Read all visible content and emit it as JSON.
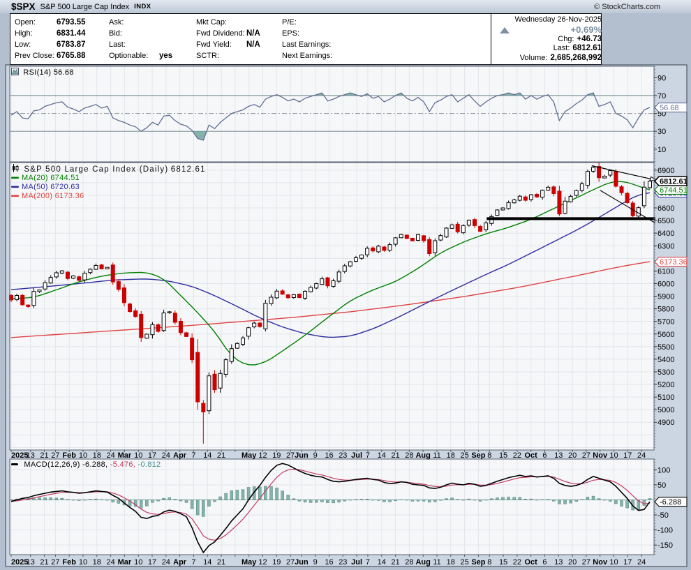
{
  "header": {
    "symbol": "$SPX",
    "name": "S&P 500 Large Cap Index",
    "exchange": "INDX",
    "copyright": "© StockCharts.com",
    "date": "Wednesday 26-Nov-2025",
    "pct_change": "+0.69%",
    "rows_left": [
      [
        "Open:",
        "6793.55"
      ],
      [
        "High:",
        "6831.44"
      ],
      [
        "Low:",
        "6783.87"
      ],
      [
        "Prev Close:",
        "6765.88"
      ]
    ],
    "rows_mid": [
      [
        "Ask:",
        ""
      ],
      [
        "Bid:",
        ""
      ],
      [
        "Last:",
        ""
      ],
      [
        "Optionable:",
        "yes"
      ]
    ],
    "rows_mid2": [
      [
        "Mkt Cap:",
        ""
      ],
      [
        "Fwd Dividend:",
        "N/A"
      ],
      [
        "Fwd Yield:",
        "N/A"
      ],
      [
        "SCTR:",
        ""
      ]
    ],
    "rows_right": [
      [
        "P/E:",
        ""
      ],
      [
        "EPS:",
        ""
      ],
      [
        "Last Earnings:",
        ""
      ],
      [
        "Next Earnings:",
        ""
      ]
    ],
    "stats": [
      [
        "Chg:",
        "+46.73"
      ],
      [
        "Last:",
        "6812.61"
      ],
      [
        "Volume:",
        "2,685,268,992"
      ]
    ]
  },
  "legends": {
    "rsi": {
      "label": "RSI(14)",
      "value": "56.68"
    },
    "main": {
      "title": "S&P 500 Large Cap Index (Daily)",
      "value": "6812.61",
      "ma20_label": "MA(20)",
      "ma20_value": "6744.51",
      "ma50_label": "MA(50)",
      "ma50_value": "6720.63",
      "ma200_label": "MA(200)",
      "ma200_value": "6173.36"
    },
    "macd": {
      "label": "MACD(12,26,9)",
      "v1": "-6.288,",
      "v2": "-5.476,",
      "v3": "-0.812"
    }
  },
  "colors": {
    "up_candle": "#000000",
    "down_candle": "#cc0000",
    "ma20": "#008000",
    "ma50": "#2d2da0",
    "ma200": "#e04343",
    "rsi_line": "#5f6e91",
    "teal_fill": "#86b2ac",
    "teal_stroke": "#4e7f78",
    "macd_line": "#000000",
    "signal_line": "#c23b5e",
    "grid": "#e2e5eb",
    "plot_bg": "#f6f7f9",
    "gutter_bg": "#ccd5e2",
    "pct_gray": "#7e90a4",
    "annotation": "#000000"
  },
  "chart_data": {
    "x_axis": {
      "total_days": 231,
      "grid_days": [
        0,
        7,
        12,
        16,
        21,
        26,
        31,
        36,
        41,
        46,
        51,
        56,
        61,
        66,
        71,
        76,
        81,
        86,
        91,
        96,
        101,
        105,
        110,
        115,
        120,
        125,
        129,
        134,
        139,
        144,
        149,
        154,
        159,
        164,
        169,
        173,
        178,
        183,
        188,
        193,
        198,
        203,
        208,
        213,
        218,
        223,
        228
      ],
      "labels": [
        [
          "2025",
          0,
          1
        ],
        [
          "13",
          7,
          0
        ],
        [
          "21",
          12,
          0
        ],
        [
          "27",
          16,
          0
        ],
        [
          "Feb",
          21,
          1
        ],
        [
          "10",
          26,
          0
        ],
        [
          "18",
          31,
          0
        ],
        [
          "24",
          36,
          0
        ],
        [
          "Mar",
          41,
          1
        ],
        [
          "10",
          46,
          0
        ],
        [
          "17",
          51,
          0
        ],
        [
          "24",
          56,
          0
        ],
        [
          "Apr",
          61,
          1
        ],
        [
          "7",
          66,
          0
        ],
        [
          "14",
          71,
          0
        ],
        [
          "21",
          76,
          0
        ],
        [
          "May",
          86,
          1
        ],
        [
          "12",
          91,
          0
        ],
        [
          "19",
          96,
          0
        ],
        [
          "27",
          101,
          0
        ],
        [
          "Jun",
          105,
          1
        ],
        [
          "9",
          110,
          0
        ],
        [
          "16",
          115,
          0
        ],
        [
          "23",
          120,
          0
        ],
        [
          "Jul",
          125,
          1
        ],
        [
          "7",
          129,
          0
        ],
        [
          "14",
          134,
          0
        ],
        [
          "21",
          139,
          0
        ],
        [
          "28",
          144,
          0
        ],
        [
          "Aug",
          149,
          1
        ],
        [
          "11",
          154,
          0
        ],
        [
          "18",
          159,
          0
        ],
        [
          "25",
          164,
          0
        ],
        [
          "Sep",
          169,
          1
        ],
        [
          "8",
          173,
          0
        ],
        [
          "15",
          178,
          0
        ],
        [
          "22",
          183,
          0
        ],
        [
          "Oct",
          188,
          1
        ],
        [
          "6",
          193,
          0
        ],
        [
          "13",
          198,
          0
        ],
        [
          "20",
          203,
          0
        ],
        [
          "27",
          208,
          0
        ],
        [
          "Nov",
          213,
          1
        ],
        [
          "10",
          218,
          0
        ],
        [
          "17",
          223,
          0
        ],
        [
          "24",
          228,
          0
        ]
      ]
    },
    "rsi": {
      "type": "line",
      "label": "RSI(14)",
      "last": 56.68,
      "levels": {
        "overbought": 70,
        "mid": 50,
        "oversold": 30
      },
      "yticks": [
        90,
        70,
        50,
        30,
        10
      ],
      "values": [
        48,
        52,
        45,
        44,
        53,
        54,
        58,
        60,
        62,
        63,
        57,
        55,
        52,
        56,
        58,
        60,
        56,
        58,
        45,
        42,
        40,
        37,
        35,
        30,
        34,
        40,
        37,
        47,
        48,
        42,
        38,
        36,
        31,
        22,
        20,
        37,
        33,
        40,
        45,
        50,
        52,
        54,
        58,
        60,
        57,
        66,
        69,
        71,
        68,
        64,
        66,
        63,
        67,
        69,
        71,
        73,
        64,
        66,
        69,
        71,
        73,
        71,
        69,
        72,
        67,
        69,
        63,
        66,
        70,
        73,
        67,
        64,
        68,
        63,
        52,
        62,
        65,
        69,
        71,
        63,
        67,
        71,
        64,
        58,
        63,
        67,
        70,
        71,
        73,
        71,
        73,
        66,
        70,
        66,
        69,
        71,
        63,
        42,
        52,
        56,
        61,
        65,
        71,
        73,
        58,
        60,
        63,
        50,
        47,
        43,
        34,
        45,
        54,
        56.68
      ]
    },
    "price": {
      "type": "candlestick",
      "title": "S&P 500 Large Cap Index (Daily)",
      "last": 6812.61,
      "range": [
        4674,
        6960
      ],
      "yticks": [
        6900,
        6600,
        6500,
        6400,
        6300,
        6100,
        6000,
        5900,
        5800,
        5700,
        5600,
        5500,
        5400,
        5300,
        5200,
        5100,
        5000,
        4900
      ],
      "axis_boxes": [
        {
          "value": 6720.63,
          "text": "6720.63",
          "color": "#2d2da0"
        },
        {
          "value": 6744.51,
          "text": "6744.51",
          "color": "#008000"
        },
        {
          "value": 6812.61,
          "text": "6812.61",
          "color": "#000000",
          "bold": true
        }
      ],
      "axis_box_ma200": {
        "value": 6173.36,
        "text": "6173.36",
        "color": "#e04343"
      },
      "closes": [
        5870,
        5906,
        5832,
        5818,
        5938,
        5949,
        6008,
        6049,
        6086,
        6101,
        6040,
        6061,
        6026,
        6083,
        6114,
        6144,
        6117,
        6129,
        6013,
        5954,
        5849,
        5778,
        5738,
        5572,
        5599,
        5675,
        5621,
        5767,
        5776,
        5693,
        5611,
        5580,
        5396,
        5062,
        4982,
        5268,
        5158,
        5287,
        5396,
        5484,
        5525,
        5569,
        5650,
        5687,
        5659,
        5844,
        5892,
        5940,
        5916,
        5888,
        5912,
        5889,
        5939,
        5970,
        6000,
        6038,
        5982,
        6022,
        6092,
        6141,
        6173,
        6205,
        6227,
        6280,
        6259,
        6297,
        6263,
        6309,
        6363,
        6389,
        6358,
        6339,
        6389,
        6340,
        6238,
        6340,
        6381,
        6440,
        6466,
        6411,
        6460,
        6502,
        6460,
        6415,
        6481,
        6532,
        6584,
        6600,
        6643,
        6664,
        6693,
        6661,
        6705,
        6688,
        6740,
        6764,
        6714,
        6552,
        6654,
        6692,
        6738,
        6791,
        6890,
        6922,
        6840,
        6852,
        6896,
        6772,
        6721,
        6642,
        6538,
        6602,
        6765,
        6812.61
      ],
      "wick_low_overrides": {
        "34": 4730,
        "33": 5000
      },
      "ma20": {
        "label": "MA(20)",
        "value": 6744.51,
        "anchors": [
          [
            0,
            5880
          ],
          [
            4,
            5890
          ],
          [
            8,
            5950
          ],
          [
            12,
            6015
          ],
          [
            16,
            6060
          ],
          [
            20,
            6085
          ],
          [
            24,
            6090
          ],
          [
            27,
            6040
          ],
          [
            30,
            5905
          ],
          [
            33,
            5770
          ],
          [
            36,
            5620
          ],
          [
            39,
            5420
          ],
          [
            42,
            5345
          ],
          [
            45,
            5375
          ],
          [
            48,
            5465
          ],
          [
            52,
            5590
          ],
          [
            56,
            5730
          ],
          [
            60,
            5865
          ],
          [
            64,
            5950
          ],
          [
            68,
            6015
          ],
          [
            72,
            6120
          ],
          [
            76,
            6245
          ],
          [
            80,
            6330
          ],
          [
            84,
            6395
          ],
          [
            88,
            6445
          ],
          [
            92,
            6510
          ],
          [
            96,
            6595
          ],
          [
            100,
            6680
          ],
          [
            103,
            6745
          ],
          [
            106,
            6805
          ],
          [
            108,
            6815
          ],
          [
            110,
            6790
          ],
          [
            112,
            6755
          ],
          [
            113,
            6744.51
          ]
        ]
      },
      "ma50": {
        "label": "MA(50)",
        "value": 6720.63,
        "anchors": [
          [
            0,
            5952
          ],
          [
            6,
            5975
          ],
          [
            12,
            6000
          ],
          [
            18,
            6028
          ],
          [
            24,
            6038
          ],
          [
            28,
            6020
          ],
          [
            32,
            5978
          ],
          [
            36,
            5905
          ],
          [
            40,
            5818
          ],
          [
            44,
            5728
          ],
          [
            48,
            5655
          ],
          [
            52,
            5602
          ],
          [
            56,
            5572
          ],
          [
            60,
            5582
          ],
          [
            64,
            5640
          ],
          [
            68,
            5722
          ],
          [
            72,
            5812
          ],
          [
            76,
            5902
          ],
          [
            80,
            5988
          ],
          [
            84,
            6072
          ],
          [
            88,
            6152
          ],
          [
            92,
            6242
          ],
          [
            96,
            6332
          ],
          [
            100,
            6422
          ],
          [
            103,
            6498
          ],
          [
            106,
            6578
          ],
          [
            109,
            6658
          ],
          [
            111,
            6705
          ],
          [
            113,
            6720.63
          ]
        ]
      },
      "ma200": {
        "label": "MA(200)",
        "value": 6173.36,
        "anchors": [
          [
            0,
            5572
          ],
          [
            10,
            5602
          ],
          [
            20,
            5632
          ],
          [
            30,
            5662
          ],
          [
            40,
            5696
          ],
          [
            50,
            5732
          ],
          [
            60,
            5776
          ],
          [
            70,
            5832
          ],
          [
            80,
            5896
          ],
          [
            90,
            5972
          ],
          [
            100,
            6062
          ],
          [
            106,
            6118
          ],
          [
            110,
            6152
          ],
          [
            113,
            6173.36
          ]
        ]
      },
      "annotations": {
        "support_line": {
          "price": 6515,
          "day_start": 172,
          "day_end": 233,
          "width": 4
        },
        "trendline_upper": {
          "from_day": 210,
          "from_price": 6935,
          "to_day": 233.5,
          "to_price": 6820,
          "arrow": true
        },
        "trendline_lower": {
          "from_day": 213,
          "from_price": 6740,
          "to_day": 233,
          "to_price": 6480
        }
      }
    },
    "macd": {
      "type": "line+histogram",
      "label": "MACD(12,26,9)",
      "last_macd": -6.288,
      "last_signal": -5.476,
      "last_hist": -0.812,
      "yticks": [
        100,
        50,
        -50,
        -100,
        -150
      ],
      "values": [
        -5,
        0,
        5,
        8,
        14,
        18,
        22,
        26,
        28,
        30,
        27,
        25,
        22,
        24,
        27,
        30,
        28,
        26,
        15,
        5,
        -10,
        -25,
        -38,
        -58,
        -62,
        -55,
        -52,
        -40,
        -34,
        -38,
        -46,
        -56,
        -92,
        -140,
        -175,
        -152,
        -140,
        -118,
        -95,
        -70,
        -50,
        -30,
        0,
        26,
        48,
        75,
        98,
        115,
        121,
        116,
        106,
        96,
        88,
        82,
        78,
        76,
        68,
        62,
        60,
        62,
        65,
        68,
        70,
        72,
        68,
        66,
        58,
        54,
        56,
        60,
        58,
        52,
        50,
        48,
        40,
        38,
        42,
        50,
        56,
        52,
        50,
        55,
        52,
        45,
        48,
        55,
        62,
        68,
        74,
        78,
        82,
        78,
        80,
        76,
        78,
        80,
        72,
        55,
        48,
        45,
        48,
        55,
        68,
        78,
        72,
        66,
        60,
        45,
        25,
        5,
        -20,
        -35,
        -32,
        -6.288
      ]
    }
  }
}
